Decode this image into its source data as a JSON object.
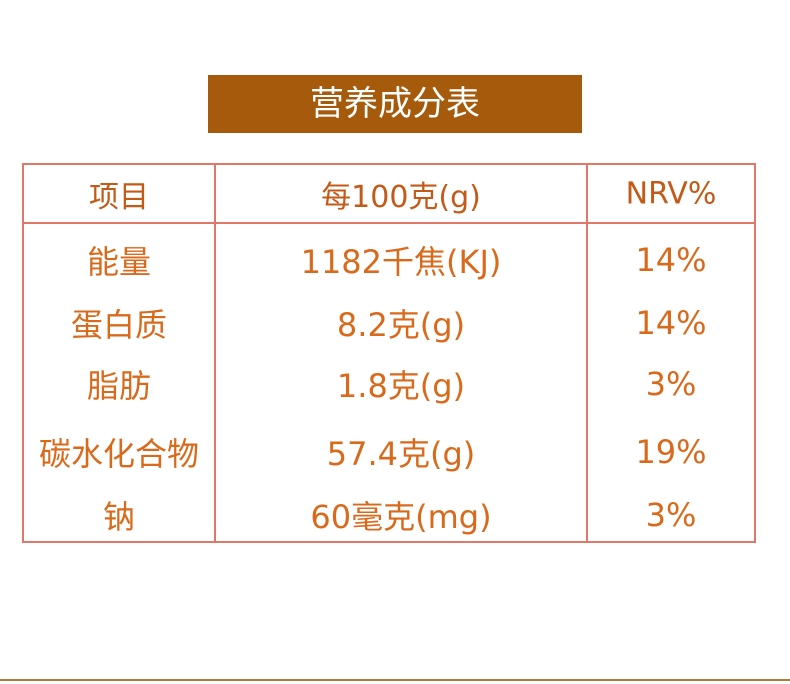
{
  "header": {
    "title": "营养成分表"
  },
  "table": {
    "columns": [
      "项目",
      "每100克(g)",
      "NRV%"
    ],
    "rows": [
      [
        "能量",
        "1182千焦(KJ)",
        "14%"
      ],
      [
        "蛋白质",
        "8.2克(g)",
        "14%"
      ],
      [
        "脂肪",
        "1.8克(g)",
        "3%"
      ],
      [
        "碳水化合物",
        "57.4克(g)",
        "19%"
      ],
      [
        "钠",
        "60毫克(mg)",
        "3%"
      ]
    ]
  }
}
